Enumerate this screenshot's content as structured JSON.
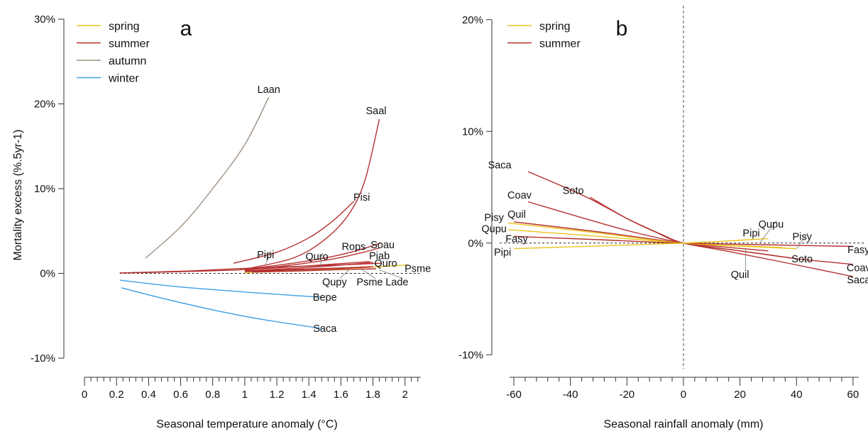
{
  "colors": {
    "spring": "#e8c31e",
    "summer": "#b5302f",
    "autumn": "#9c8f80",
    "winter": "#3aa0e6",
    "axis": "#333333",
    "guide": "#8a8a8a"
  },
  "chart_data": [
    {
      "type": "line",
      "panel_label": "a",
      "xlabel": "Seasonal temperature anomaly (°C)",
      "ylabel": "Mortality excess (%.5yr-1)",
      "xlim": [
        -0.05,
        2.1
      ],
      "ylim": [
        -11,
        30
      ],
      "x_ticks": [
        0,
        0.2,
        0.4,
        0.6,
        0.8,
        1,
        1.2,
        1.4,
        1.6,
        1.8,
        2
      ],
      "x_tick_labels": [
        "0",
        "0.2",
        "0.4",
        "0.6",
        "0.8",
        "1",
        "1.2",
        "1.4",
        "1.6",
        "1.8",
        "2"
      ],
      "y_ticks": [
        -10,
        0,
        10,
        20,
        30
      ],
      "y_tick_labels": [
        "-10%",
        "0%",
        "10%",
        "20%",
        "30%"
      ],
      "legend": [
        "spring",
        "summer",
        "autumn",
        "winter"
      ],
      "legend_position": "top-left",
      "zero_line": "horizontal dashed at y=0",
      "series": [
        {
          "name": "Laan",
          "season": "autumn",
          "x": [
            0.38,
            0.6,
            0.8,
            1.0,
            1.15
          ],
          "y": [
            1.8,
            5.5,
            10.0,
            15.2,
            20.8
          ]
        },
        {
          "name": "Saal",
          "season": "summer",
          "x": [
            1.0,
            1.3,
            1.5,
            1.65,
            1.75,
            1.84
          ],
          "y": [
            0.5,
            1.8,
            4.0,
            7.0,
            11.0,
            18.2
          ]
        },
        {
          "name": "Pisi",
          "season": "summer",
          "x": [
            0.93,
            1.2,
            1.4,
            1.55,
            1.68
          ],
          "y": [
            1.2,
            2.5,
            4.2,
            6.2,
            8.5
          ]
        },
        {
          "name": "Rops",
          "season": "summer",
          "x": [
            1.0,
            1.3,
            1.55,
            1.72,
            1.85
          ],
          "y": [
            0.5,
            1.2,
            2.0,
            2.8,
            3.6
          ]
        },
        {
          "name": "Soau",
          "season": "summer",
          "x": [
            1.0,
            1.3,
            1.55,
            1.72,
            1.84
          ],
          "y": [
            0.4,
            1.0,
            1.7,
            2.4,
            3.0
          ]
        },
        {
          "name": "Quro",
          "season": "summer",
          "x": [
            0.22,
            0.6,
            1.0,
            1.4,
            1.78
          ],
          "y": [
            0.05,
            0.2,
            0.45,
            0.9,
            1.4
          ]
        },
        {
          "name": "Piab",
          "season": "summer",
          "x": [
            1.0,
            1.3,
            1.55,
            1.8
          ],
          "y": [
            0.3,
            0.6,
            0.9,
            1.3
          ]
        },
        {
          "name": "Pipi",
          "season": "summer",
          "x": [
            0.22,
            0.6,
            1.0,
            1.6,
            1.85
          ],
          "y": [
            0.05,
            0.25,
            0.6,
            1.0,
            1.2
          ]
        },
        {
          "name": "Psme",
          "season": "spring",
          "x": [
            1.0,
            1.4,
            1.8,
            2.02
          ],
          "y": [
            0.1,
            0.35,
            0.75,
            1.0
          ]
        },
        {
          "name": "Qupy",
          "season": "summer",
          "x": [
            1.0,
            1.3,
            1.6,
            1.78
          ],
          "y": [
            0.2,
            0.4,
            0.6,
            0.75
          ]
        },
        {
          "name": "Psme",
          "season": "summer",
          "x": [
            1.05,
            1.35,
            1.6,
            1.8
          ],
          "y": [
            0.3,
            0.5,
            0.65,
            0.8
          ]
        },
        {
          "name": "Lade",
          "season": "summer",
          "x": [
            1.05,
            1.35,
            1.6,
            1.82
          ],
          "y": [
            0.15,
            0.3,
            0.45,
            0.55
          ]
        },
        {
          "name": "Bepe",
          "season": "winter",
          "x": [
            0.22,
            0.6,
            1.0,
            1.3,
            1.48
          ],
          "y": [
            -0.8,
            -1.6,
            -2.2,
            -2.6,
            -2.8
          ]
        },
        {
          "name": "Saca",
          "season": "winter",
          "x": [
            0.23,
            0.5,
            0.8,
            1.1,
            1.48
          ],
          "y": [
            -1.7,
            -3.0,
            -4.3,
            -5.4,
            -6.5
          ]
        }
      ],
      "labels": [
        {
          "text": "Laan",
          "x": 1.15,
          "y": 21.7
        },
        {
          "text": "Saal",
          "x": 1.82,
          "y": 19.2
        },
        {
          "text": "Pisi",
          "x": 1.73,
          "y": 9.0
        },
        {
          "text": "Pipi",
          "x": 1.13,
          "y": 2.2,
          "leader_to": [
            1.13,
            1.1
          ]
        },
        {
          "text": "Quro",
          "x": 1.45,
          "y": 2.0,
          "leader_to": [
            1.47,
            0.7
          ]
        },
        {
          "text": "Rops",
          "x": 1.68,
          "y": 3.2
        },
        {
          "text": "Soau",
          "x": 1.86,
          "y": 3.4
        },
        {
          "text": "Piab",
          "x": 1.84,
          "y": 2.1
        },
        {
          "text": "Quro",
          "x": 1.88,
          "y": 1.2
        },
        {
          "text": "Psme",
          "x": 2.08,
          "y": 0.6
        },
        {
          "text": "Qupy",
          "x": 1.56,
          "y": -1.0,
          "leader_to": [
            1.66,
            0.6
          ]
        },
        {
          "text": "Psme",
          "x": 1.78,
          "y": -1.0,
          "leader_to": [
            1.72,
            0.6
          ]
        },
        {
          "text": "Lade",
          "x": 1.95,
          "y": -1.0,
          "leader_to": [
            1.84,
            0.4
          ]
        },
        {
          "text": "Bepe",
          "x": 1.5,
          "y": -2.8
        },
        {
          "text": "Saca",
          "x": 1.5,
          "y": -6.5
        }
      ]
    },
    {
      "type": "line",
      "panel_label": "b",
      "xlabel": "Seasonal rainfall anomaly (mm)",
      "ylabel": "",
      "xlim": [
        -65,
        65
      ],
      "ylim": [
        -11,
        21
      ],
      "x_ticks": [
        -60,
        -40,
        -20,
        0,
        20,
        40,
        60
      ],
      "x_tick_labels": [
        "-60",
        "-40",
        "-20",
        "0",
        "20",
        "40",
        "60"
      ],
      "y_ticks": [
        -10,
        0,
        10,
        20
      ],
      "y_tick_labels": [
        "-10%",
        "0%",
        "10%",
        "20%"
      ],
      "legend": [
        "spring",
        "summer"
      ],
      "legend_position": "top-left",
      "zero_line": "horizontal dashed at y=0 and vertical dashed at x=0",
      "series": [
        {
          "name": "Saca",
          "season": "summer",
          "x": [
            -55,
            -35,
            -20,
            -8,
            0,
            15,
            35,
            60
          ],
          "y": [
            6.4,
            4.2,
            2.2,
            0.8,
            0,
            -0.7,
            -1.7,
            -3.0
          ]
        },
        {
          "name": "Coav",
          "season": "summer",
          "x": [
            -55,
            -35,
            -18,
            0,
            20,
            40,
            60
          ],
          "y": [
            3.7,
            2.2,
            1.0,
            0,
            -0.7,
            -1.4,
            -1.9
          ]
        },
        {
          "name": "Soto",
          "season": "summer",
          "x": [
            -33,
            -20,
            -10,
            0,
            20,
            40
          ],
          "y": [
            4.1,
            2.2,
            1.0,
            0,
            -0.7,
            -1.4
          ]
        },
        {
          "name": "Quil",
          "season": "summer",
          "x": [
            -60,
            -30,
            0,
            30
          ],
          "y": [
            1.9,
            1.0,
            0,
            -0.7
          ]
        },
        {
          "name": "Pisy",
          "season": "spring",
          "x": [
            -62,
            -30,
            0,
            40
          ],
          "y": [
            1.8,
            0.9,
            0,
            -0.5
          ]
        },
        {
          "name": "Qupu",
          "season": "spring",
          "x": [
            -62,
            -30,
            0,
            35
          ],
          "y": [
            1.2,
            0.6,
            0,
            -0.4
          ]
        },
        {
          "name": "Fasy",
          "season": "summer",
          "x": [
            -60,
            -30,
            0,
            60
          ],
          "y": [
            0.6,
            0.3,
            0,
            -0.3
          ]
        },
        {
          "name": "Pipi",
          "season": "spring",
          "x": [
            -60,
            0,
            30
          ],
          "y": [
            -0.5,
            0,
            0.4
          ]
        }
      ],
      "labels": [
        {
          "text": "Saca",
          "x": -65,
          "y": 7.0
        },
        {
          "text": "Soto",
          "x": -39,
          "y": 4.7
        },
        {
          "text": "Coav",
          "x": -58,
          "y": 4.3
        },
        {
          "text": "Quil",
          "x": -59,
          "y": 2.6
        },
        {
          "text": "Pisy",
          "x": -67,
          "y": 2.3
        },
        {
          "text": "Qupu",
          "x": -67,
          "y": 1.3
        },
        {
          "text": "Fasy",
          "x": -59,
          "y": 0.4
        },
        {
          "text": "Pipi",
          "x": -64,
          "y": -0.8
        },
        {
          "text": "Pipi",
          "x": 24,
          "y": 0.9
        },
        {
          "text": "Qupu",
          "x": 31,
          "y": 1.7,
          "leader_to": [
            27,
            0.0
          ]
        },
        {
          "text": "Pisy",
          "x": 42,
          "y": 0.6,
          "leader_to": [
            40,
            -0.5
          ]
        },
        {
          "text": "Fasy",
          "x": 62,
          "y": -0.6
        },
        {
          "text": "Quil",
          "x": 20,
          "y": -2.8,
          "leader_to": [
            22,
            -0.5
          ]
        },
        {
          "text": "Soto",
          "x": 42,
          "y": -1.4
        },
        {
          "text": "Coav",
          "x": 62,
          "y": -2.2
        },
        {
          "text": "Saca",
          "x": 62,
          "y": -3.3
        }
      ]
    }
  ]
}
